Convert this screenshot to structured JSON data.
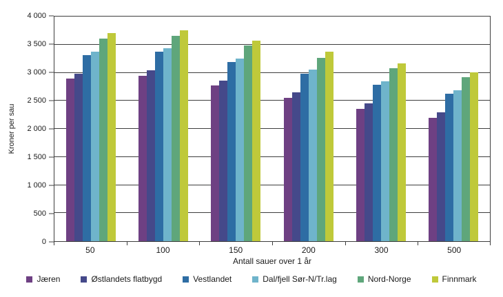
{
  "chart_data": {
    "type": "bar",
    "title": "",
    "xlabel": "Antall sauer over 1 år",
    "ylabel": "Kroner per sau",
    "categories": [
      "50",
      "100",
      "150",
      "200",
      "300",
      "500"
    ],
    "series": [
      {
        "name": "Jæren",
        "color": "#6E4083",
        "values": [
          2890,
          2950,
          2770,
          2550,
          2360,
          2200
        ]
      },
      {
        "name": "Østlandets flatbygd",
        "color": "#45498A",
        "values": [
          2980,
          3040,
          2860,
          2650,
          2460,
          2290
        ]
      },
      {
        "name": "Vestlandet",
        "color": "#2E6DA4",
        "values": [
          3310,
          3370,
          3190,
          2980,
          2780,
          2620
        ]
      },
      {
        "name": "Dal/fjell Sør-N/Tr.lag",
        "color": "#6FB4CB",
        "values": [
          3380,
          3430,
          3250,
          3060,
          2850,
          2690
        ]
      },
      {
        "name": "Nord-Norge",
        "color": "#5FA67B",
        "values": [
          3610,
          3660,
          3480,
          3270,
          3080,
          2920
        ]
      },
      {
        "name": "Finnmark",
        "color": "#BFC93A",
        "values": [
          3700,
          3750,
          3570,
          3370,
          3170,
          3010
        ]
      }
    ],
    "ylim": [
      0,
      4000
    ],
    "ytick_step": 500,
    "ytick_labels": [
      "0",
      "500",
      "1 000",
      "1 500",
      "2 000",
      "2 500",
      "3 000",
      "3 500",
      "4 000"
    ],
    "grid": true,
    "legend_position": "bottom",
    "axis_color": "#3c3c3c"
  }
}
